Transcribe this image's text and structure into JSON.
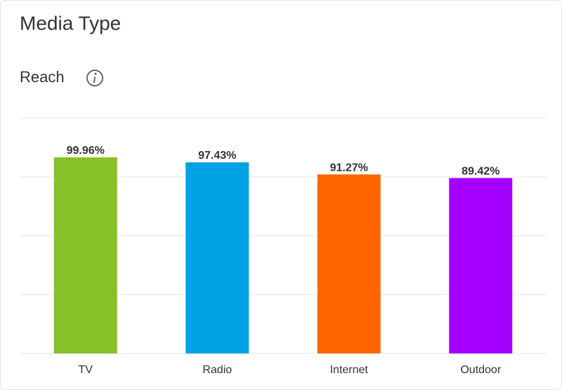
{
  "chart_data": {
    "type": "bar",
    "title": "Media Type",
    "subtitle": "Reach",
    "categories": [
      "TV",
      "Radio",
      "Internet",
      "Outdoor"
    ],
    "values": [
      99.96,
      97.43,
      91.27,
      89.42
    ],
    "value_labels": [
      "99.96%",
      "97.43%",
      "91.27%",
      "89.42%"
    ],
    "colors": [
      "#86c127",
      "#00a3e4",
      "#ff6600",
      "#a600ff"
    ],
    "ylim": [
      0,
      120
    ],
    "yticks": [
      0,
      30,
      60,
      90,
      120
    ],
    "grid": true
  }
}
